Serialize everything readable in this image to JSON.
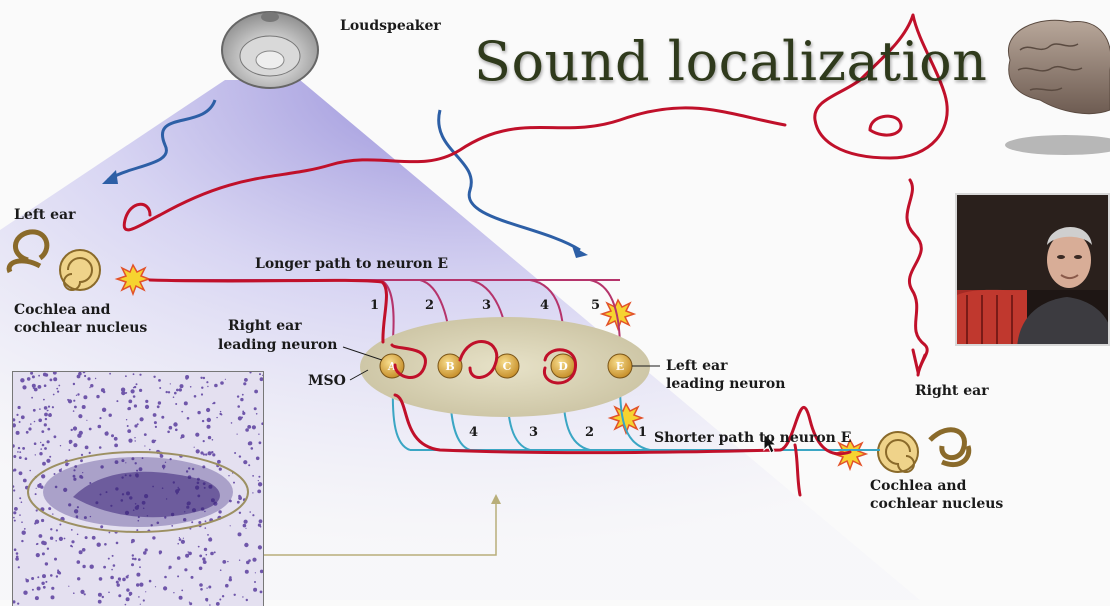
{
  "title": "Sound localization",
  "labels": {
    "loudspeaker": "Loudspeaker",
    "left_ear": "Left ear",
    "cochlea_left_1": "Cochlea and",
    "cochlea_left_2": "cochlear nucleus",
    "longer_path": "Longer path to neuron E",
    "shorter_path": "Shorter path to neuron E",
    "right_ear_leading_1": "Right ear",
    "right_ear_leading_2": "leading neuron",
    "mso": "MSO",
    "left_ear_leading_1": "Left ear",
    "left_ear_leading_2": "leading neuron",
    "right_ear": "Right ear",
    "cochlea_right_1": "Cochlea and",
    "cochlea_right_2": "cochlear nucleus"
  },
  "neurons": [
    "A",
    "B",
    "C",
    "D",
    "E"
  ],
  "top_path_numbers": [
    "1",
    "2",
    "3",
    "4",
    "5"
  ],
  "bottom_path_numbers": [
    "4",
    "3",
    "2",
    "1"
  ],
  "colors": {
    "annotation": "#c0102a",
    "sound_wave": "#2d5fa6",
    "left_axon": "#b5346b",
    "right_axon": "#3aa6c4",
    "neuron": "#e3b24a",
    "mso": "#d7d1b4"
  },
  "icons": [
    "loudspeaker-icon",
    "left-ear-icon",
    "right-ear-icon",
    "brain-icon",
    "spark-icon"
  ]
}
